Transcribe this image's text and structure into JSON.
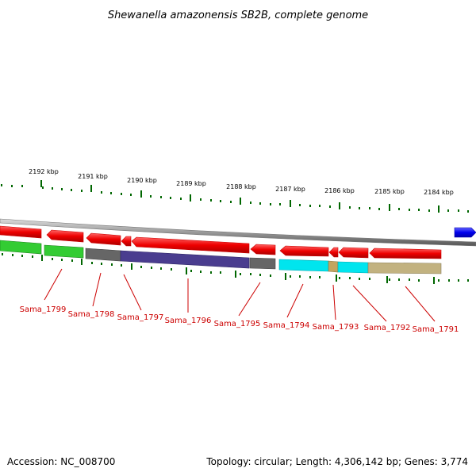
{
  "title": "Shewanella amazonensis SB2B, complete genome",
  "footer": {
    "accession": "Accession: NC_008700",
    "summary": "Topology: circular; Length: 4,306,142 bp; Genes: 3,774"
  },
  "ruler": {
    "labels": [
      "2192 kbp",
      "2191 kbp",
      "2190 kbp",
      "2189 kbp",
      "2188 kbp",
      "2187 kbp",
      "2186 kbp",
      "2185 kbp",
      "2184 kbp"
    ]
  },
  "genes": [
    {
      "name": "Sama_1799"
    },
    {
      "name": "Sama_1798"
    },
    {
      "name": "Sama_1797"
    },
    {
      "name": "Sama_1796"
    },
    {
      "name": "Sama_1795"
    },
    {
      "name": "Sama_1794"
    },
    {
      "name": "Sama_1793"
    },
    {
      "name": "Sama_1792"
    },
    {
      "name": "Sama_1791"
    }
  ],
  "colors": {
    "forward_arrow": "#ee0000",
    "reverse_arrow": "#0000ee",
    "cog_green": "#33cc33",
    "cog_gray": "#666666",
    "cog_purple": "#4a3d8f",
    "cog_cyan": "#00e5ee",
    "cog_tan": "#c2b280",
    "tick": "#006600",
    "backbone": "#888888"
  }
}
